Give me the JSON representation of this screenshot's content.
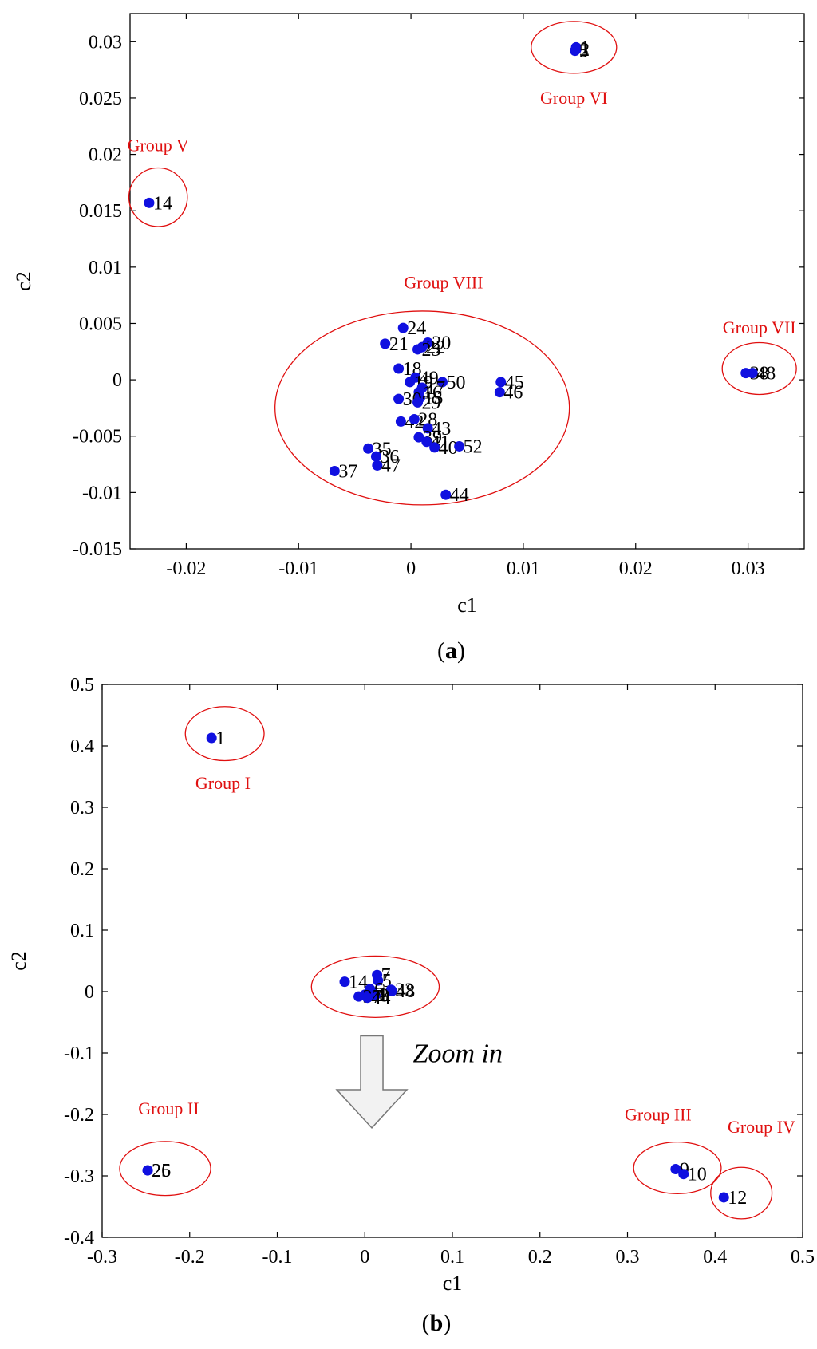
{
  "colors": {
    "point": "#1010e0",
    "group": "#e01010",
    "axis": "#000000",
    "arrow_fill": "#f2f2f2",
    "arrow_stroke": "#777777"
  },
  "chart_data": [
    {
      "id": "a",
      "type": "scatter",
      "caption_letter": "a",
      "xlabel": "c1",
      "ylabel": "c2",
      "xlim": [
        -0.025,
        0.035
      ],
      "ylim": [
        -0.015,
        0.0325
      ],
      "xticks": [
        -0.02,
        -0.01,
        0,
        0.01,
        0.02,
        0.03
      ],
      "xtick_labels": [
        "-0.02",
        "-0.01",
        "0",
        "0.01",
        "0.02",
        "0.03"
      ],
      "yticks": [
        -0.015,
        -0.01,
        -0.005,
        0,
        0.005,
        0.01,
        0.015,
        0.02,
        0.025,
        0.03
      ],
      "ytick_labels": [
        "-0.015",
        "-0.01",
        "-0.005",
        "0",
        "0.005",
        "0.01",
        "0.015",
        "0.02",
        "0.025",
        "0.03"
      ],
      "points": [
        {
          "label": "14",
          "x": -0.0233,
          "y": 0.0157
        },
        {
          "label": "1",
          "x": 0.0147,
          "y": 0.0295
        },
        {
          "label": "2",
          "x": 0.0147,
          "y": 0.0293
        },
        {
          "label": "5",
          "x": 0.0146,
          "y": 0.0292
        },
        {
          "label": "38",
          "x": 0.0298,
          "y": 0.0006
        },
        {
          "label": "48",
          "x": 0.0304,
          "y": 0.0006
        },
        {
          "label": "24",
          "x": -0.0007,
          "y": 0.0046
        },
        {
          "label": "21",
          "x": -0.0023,
          "y": 0.0032
        },
        {
          "label": "20",
          "x": 0.0015,
          "y": 0.0033
        },
        {
          "label": "22",
          "x": 0.001,
          "y": 0.0029
        },
        {
          "label": "23",
          "x": 0.0006,
          "y": 0.0027
        },
        {
          "label": "18",
          "x": -0.0011,
          "y": 0.001
        },
        {
          "label": "49",
          "x": 0.0004,
          "y": 0.0002
        },
        {
          "label": "19",
          "x": -0.0001,
          "y": -0.0002
        },
        {
          "label": "50",
          "x": 0.0028,
          "y": -0.0002
        },
        {
          "label": "17",
          "x": 0.001,
          "y": -0.0007
        },
        {
          "label": "16",
          "x": 0.0007,
          "y": -0.0011
        },
        {
          "label": "15",
          "x": 0.0008,
          "y": -0.0016
        },
        {
          "label": "30",
          "x": -0.0011,
          "y": -0.0017
        },
        {
          "label": "29",
          "x": 0.0006,
          "y": -0.002
        },
        {
          "label": "45",
          "x": 0.008,
          "y": -0.0002
        },
        {
          "label": "46",
          "x": 0.0079,
          "y": -0.0011
        },
        {
          "label": "42",
          "x": -0.0009,
          "y": -0.0037
        },
        {
          "label": "28",
          "x": 0.0003,
          "y": -0.0035
        },
        {
          "label": "43",
          "x": 0.0015,
          "y": -0.0043
        },
        {
          "label": "39",
          "x": 0.0007,
          "y": -0.0051
        },
        {
          "label": "41",
          "x": 0.0014,
          "y": -0.0055
        },
        {
          "label": "40",
          "x": 0.0021,
          "y": -0.006
        },
        {
          "label": "52",
          "x": 0.0043,
          "y": -0.0059
        },
        {
          "label": "35",
          "x": -0.0038,
          "y": -0.0061
        },
        {
          "label": "36",
          "x": -0.0031,
          "y": -0.0068
        },
        {
          "label": "47",
          "x": -0.003,
          "y": -0.0076
        },
        {
          "label": "37",
          "x": -0.0068,
          "y": -0.0081
        },
        {
          "label": "44",
          "x": 0.0031,
          "y": -0.0102
        }
      ],
      "groups": [
        {
          "label": "Group V",
          "center": [
            -0.0225,
            0.0162
          ],
          "rx": 0.0026,
          "ry": 0.0026,
          "label_pos": [
            -0.0225,
            0.0203
          ]
        },
        {
          "label": "Group VI",
          "center": [
            0.0145,
            0.0295
          ],
          "rx": 0.0038,
          "ry": 0.0023,
          "label_pos": [
            0.0145,
            0.0245
          ]
        },
        {
          "label": "Group VII",
          "center": [
            0.031,
            0.001
          ],
          "rx": 0.0033,
          "ry": 0.0023,
          "label_pos": [
            0.031,
            0.0041
          ]
        },
        {
          "label": "Group VIII",
          "center": [
            0.001,
            -0.0025
          ],
          "rx": 0.0131,
          "ry": 0.0086,
          "label_pos": [
            0.0029,
            0.0081
          ]
        }
      ]
    },
    {
      "id": "b",
      "type": "scatter",
      "caption_letter": "b",
      "xlabel": "c1",
      "ylabel": "c2",
      "xlim": [
        -0.3,
        0.5
      ],
      "ylim": [
        -0.4,
        0.5
      ],
      "xticks": [
        -0.3,
        -0.2,
        -0.1,
        0,
        0.1,
        0.2,
        0.3,
        0.4,
        0.5
      ],
      "xtick_labels": [
        "-0.3",
        "-0.2",
        "-0.1",
        "0",
        "0.1",
        "0.2",
        "0.3",
        "0.4",
        "0.5"
      ],
      "yticks": [
        -0.4,
        -0.3,
        -0.2,
        -0.1,
        0,
        0.1,
        0.2,
        0.3,
        0.4,
        0.5
      ],
      "ytick_labels": [
        "-0.4",
        "-0.3",
        "-0.2",
        "-0.1",
        "0",
        "0.1",
        "0.2",
        "0.3",
        "0.4",
        "0.5"
      ],
      "points": [
        {
          "label": "1",
          "x": -0.175,
          "y": 0.413
        },
        {
          "label": "25",
          "x": -0.248,
          "y": -0.291
        },
        {
          "label": "26",
          "x": -0.248,
          "y": -0.291
        },
        {
          "label": "9",
          "x": 0.355,
          "y": -0.289
        },
        {
          "label": "10",
          "x": 0.364,
          "y": -0.297
        },
        {
          "label": "12",
          "x": 0.41,
          "y": -0.335
        },
        {
          "label": "14",
          "x": -0.023,
          "y": 0.016
        },
        {
          "label": "7",
          "x": 0.014,
          "y": 0.027
        },
        {
          "label": "5",
          "x": 0.015,
          "y": 0.018
        },
        {
          "label": "33",
          "x": 0.03,
          "y": 0.003
        },
        {
          "label": "48",
          "x": 0.031,
          "y": 0.001
        },
        {
          "label": "11",
          "x": 0.0,
          "y": -0.005
        },
        {
          "label": "6",
          "x": 0.006,
          "y": 0.004
        },
        {
          "label": "4",
          "x": 0.009,
          "y": -0.003
        },
        {
          "label": "8",
          "x": 0.012,
          "y": -0.006
        },
        {
          "label": "37",
          "x": -0.007,
          "y": -0.008
        },
        {
          "label": "44",
          "x": 0.003,
          "y": -0.01
        }
      ],
      "groups": [
        {
          "label": "Group I",
          "center": [
            -0.16,
            0.42
          ],
          "rx": 0.045,
          "ry": 0.044,
          "label_pos": [
            -0.162,
            0.33
          ]
        },
        {
          "label": "Group II",
          "center": [
            -0.228,
            -0.288
          ],
          "rx": 0.052,
          "ry": 0.044,
          "label_pos": [
            -0.224,
            -0.2
          ]
        },
        {
          "label": "Group III",
          "center": [
            0.357,
            -0.287
          ],
          "rx": 0.05,
          "ry": 0.042,
          "label_pos": [
            0.335,
            -0.21
          ]
        },
        {
          "label": "Group IV",
          "center": [
            0.43,
            -0.328
          ],
          "rx": 0.035,
          "ry": 0.042,
          "label_pos": [
            0.453,
            -0.23
          ]
        },
        {
          "label": "",
          "center": [
            0.012,
            0.008
          ],
          "rx": 0.073,
          "ry": 0.05,
          "label_pos": null
        }
      ],
      "annotation": {
        "text": "Zoom in",
        "arrow_from": [
          0.008,
          -0.072
        ],
        "arrow_to": [
          0.008,
          -0.222
        ],
        "text_pos": [
          0.055,
          -0.115
        ]
      }
    }
  ]
}
